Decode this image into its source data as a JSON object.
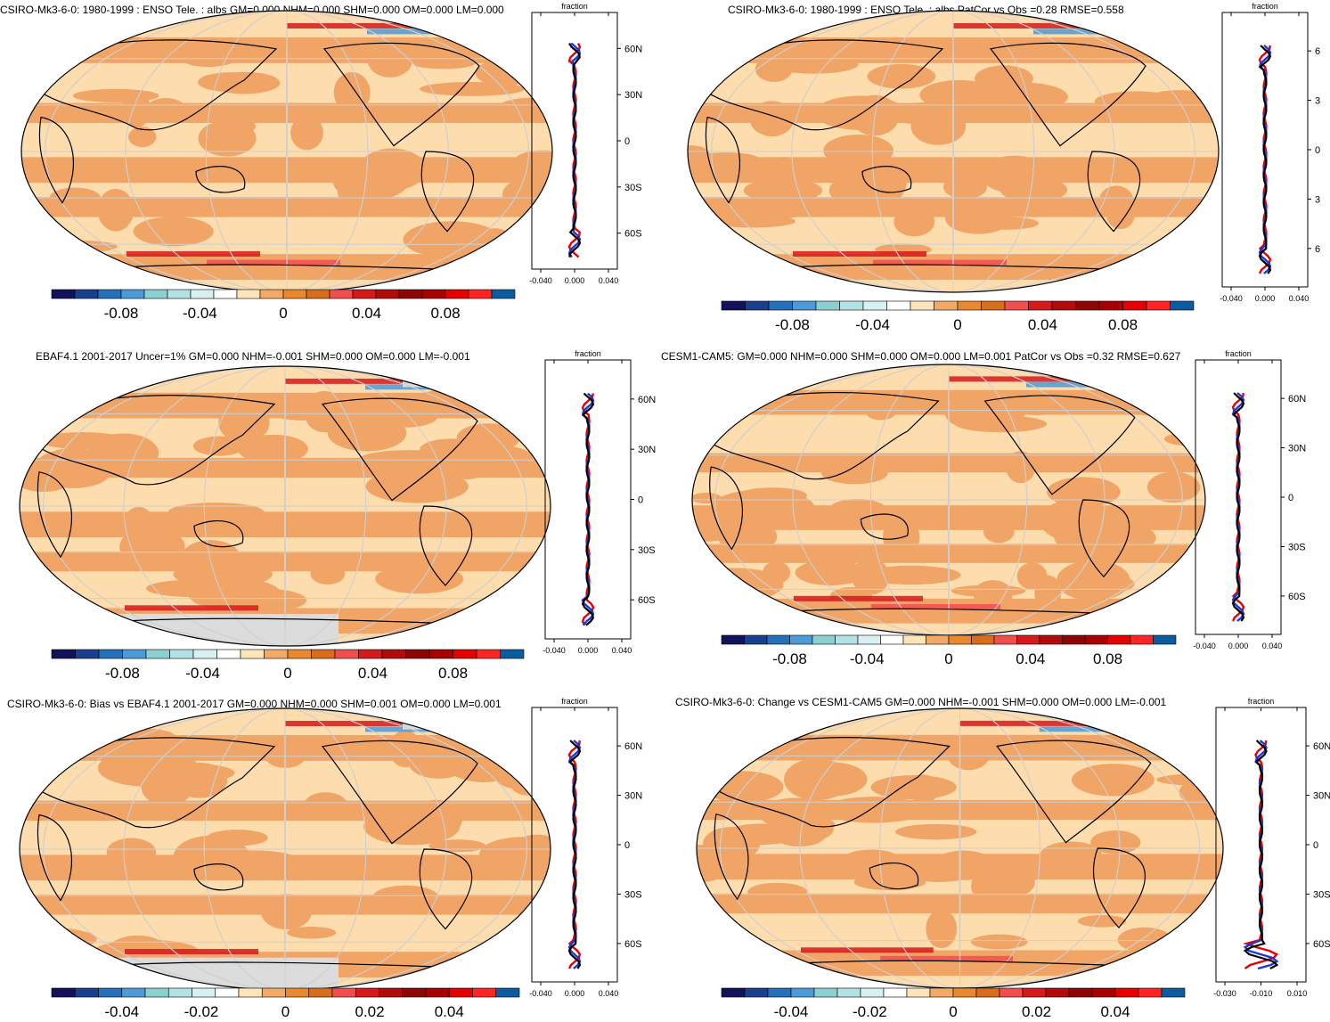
{
  "colors": {
    "palette": [
      "#12125c",
      "#1b3f8f",
      "#2470bb",
      "#4c9ad6",
      "#8ccfd0",
      "#b3e2e5",
      "#d9f0f0",
      "#ffffff",
      "#fde5b9",
      "#f2a867",
      "#e8882f",
      "#d96d1e",
      "#f14f4f",
      "#d6191b",
      "#b10b0b",
      "#8e0505",
      "#a80000",
      "#e60000",
      "#ff2525",
      "#0b5ba1"
    ],
    "ocean_fill": "#fddcad",
    "band_fill": "#f0a466",
    "missing_fill": "#dcdcdc",
    "zonal_model": "#e60000",
    "zonal_obs": "#1f37d6",
    "zonal_mean": "#000000"
  },
  "panels": [
    {
      "id": "p1",
      "title": "CSIRO-Mk3-6-0: 1980-1999 : ENSO Tele. : albs GM=0.000 NHM=0.000 SHM=0.000 OM=0.000 LM=0.000",
      "colorbar_ticks": [
        "-0.08",
        "-0.04",
        "0",
        "0.04",
        "0.08"
      ],
      "zonal": {
        "label": "fraction",
        "lat_ticks": [
          "60N",
          "30N",
          "0",
          "30S",
          "60S"
        ],
        "x_ticks": [
          "-0.040",
          "0.000",
          "0.040"
        ]
      }
    },
    {
      "id": "p2",
      "title": "CSIRO-Mk3-6-0: 1980-1999 : ENSO Tele. : albs PatCor vs Obs =0.28 RMSE=0.558",
      "colorbar_ticks": [
        "-0.08",
        "-0.04",
        "0",
        "0.04",
        "0.08"
      ],
      "zonal": {
        "label": "fraction",
        "lat_ticks": [
          "6",
          "3",
          "0",
          "3",
          "6"
        ],
        "x_ticks": [
          "-0.040",
          "0.000",
          "0.040"
        ]
      }
    },
    {
      "id": "p3",
      "title": "EBAF4.1 2001-2017 Uncer=1% GM=0.000 NHM=-0.001 SHM=0.000 OM=0.000 LM=-0.001",
      "colorbar_ticks": [
        "-0.08",
        "-0.04",
        "0",
        "0.04",
        "0.08"
      ],
      "zonal": {
        "label": "fraction",
        "lat_ticks": [
          "60N",
          "30N",
          "0",
          "30S",
          "60S"
        ],
        "x_ticks": [
          "-0.040",
          "0.000",
          "0.040"
        ]
      }
    },
    {
      "id": "p4",
      "title": "CESM1-CAM5: GM=0.000 NHM=0.000 SHM=0.000 OM=0.000 LM=0.001 PatCor vs Obs =0.32 RMSE=0.627",
      "colorbar_ticks": [
        "-0.08",
        "-0.04",
        "0",
        "0.04",
        "0.08"
      ],
      "zonal": {
        "label": "fraction",
        "lat_ticks": [
          "60N",
          "30N",
          "0",
          "30S",
          "60S"
        ],
        "x_ticks": [
          "-0.040",
          "0.000",
          "0.040"
        ]
      }
    },
    {
      "id": "p5",
      "title": "CSIRO-Mk3-6-0: Bias vs EBAF4.1 2001-2017 GM=0.000 NHM=0.000 SHM=0.001 OM=0.000 LM=0.001",
      "colorbar_ticks": [
        "-0.04",
        "-0.02",
        "0",
        "0.02",
        "0.04"
      ],
      "zonal": {
        "label": "fraction",
        "lat_ticks": [
          "60N",
          "30N",
          "0",
          "30S",
          "60S"
        ],
        "x_ticks": [
          "-0.040",
          "0.000",
          "0.040"
        ]
      }
    },
    {
      "id": "p6",
      "title": "CSIRO-Mk3-6-0: Change vs CESM1-CAM5 GM=0.000 NHM=-0.001 SHM=0.000 OM=0.000 LM=-0.001",
      "colorbar_ticks": [
        "-0.04",
        "-0.02",
        "0",
        "0.02",
        "0.04"
      ],
      "zonal": {
        "label": "fraction",
        "lat_ticks": [
          "60N",
          "30N",
          "0",
          "30S",
          "60S"
        ],
        "x_ticks": [
          "-0.030",
          "-0.010",
          "0.010"
        ]
      }
    }
  ]
}
